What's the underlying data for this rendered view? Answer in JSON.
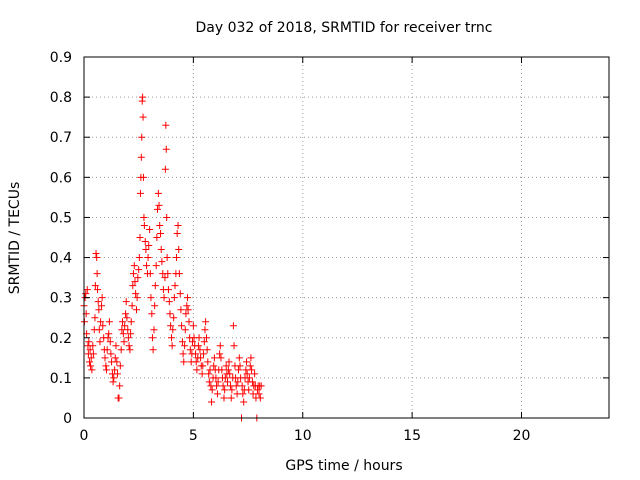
{
  "chart_data": {
    "type": "scatter",
    "title": "Day 032 of 2018, SRMTID for receiver trnc",
    "xlabel": "GPS time / hours",
    "ylabel": "SRMTID / TECUs",
    "xlim": [
      0,
      24
    ],
    "ylim": [
      0,
      0.9
    ],
    "xticks": [
      0,
      5,
      10,
      15,
      20
    ],
    "yticks": [
      0,
      0.1,
      0.2,
      0.3,
      0.4,
      0.5,
      0.6,
      0.7,
      0.8,
      0.9
    ],
    "grid": true,
    "marker": "+",
    "marker_color": "#ff0000",
    "series": [
      {
        "name": "trnc",
        "points": [
          [
            0.0,
            0.28
          ],
          [
            0.02,
            0.24
          ],
          [
            0.05,
            0.3
          ],
          [
            0.08,
            0.31
          ],
          [
            0.1,
            0.26
          ],
          [
            0.12,
            0.21
          ],
          [
            0.15,
            0.32
          ],
          [
            0.18,
            0.18
          ],
          [
            0.2,
            0.16
          ],
          [
            0.22,
            0.19
          ],
          [
            0.25,
            0.14
          ],
          [
            0.28,
            0.17
          ],
          [
            0.3,
            0.13
          ],
          [
            0.33,
            0.15
          ],
          [
            0.36,
            0.12
          ],
          [
            0.4,
            0.18
          ],
          [
            0.43,
            0.16
          ],
          [
            0.47,
            0.22
          ],
          [
            0.5,
            0.25
          ],
          [
            0.52,
            0.33
          ],
          [
            0.55,
            0.41
          ],
          [
            0.58,
            0.4
          ],
          [
            0.6,
            0.36
          ],
          [
            0.62,
            0.32
          ],
          [
            0.65,
            0.29
          ],
          [
            0.68,
            0.27
          ],
          [
            0.7,
            0.22
          ],
          [
            0.73,
            0.19
          ],
          [
            0.76,
            0.24
          ],
          [
            0.8,
            0.28
          ],
          [
            0.83,
            0.3
          ],
          [
            0.86,
            0.23
          ],
          [
            0.9,
            0.2
          ],
          [
            0.93,
            0.17
          ],
          [
            0.96,
            0.15
          ],
          [
            1.0,
            0.13
          ],
          [
            1.03,
            0.12
          ],
          [
            1.06,
            0.17
          ],
          [
            1.1,
            0.2
          ],
          [
            1.13,
            0.21
          ],
          [
            1.16,
            0.24
          ],
          [
            1.2,
            0.19
          ],
          [
            1.23,
            0.16
          ],
          [
            1.26,
            0.14
          ],
          [
            1.3,
            0.11
          ],
          [
            1.33,
            0.09
          ],
          [
            1.36,
            0.1
          ],
          [
            1.4,
            0.12
          ],
          [
            1.43,
            0.15
          ],
          [
            1.46,
            0.18
          ],
          [
            1.5,
            0.14
          ],
          [
            1.53,
            0.11
          ],
          [
            1.56,
            0.05
          ],
          [
            1.6,
            0.05
          ],
          [
            1.63,
            0.08
          ],
          [
            1.66,
            0.13
          ],
          [
            1.7,
            0.17
          ],
          [
            1.73,
            0.22
          ],
          [
            1.76,
            0.24
          ],
          [
            1.8,
            0.21
          ],
          [
            1.83,
            0.19
          ],
          [
            1.86,
            0.23
          ],
          [
            1.9,
            0.26
          ],
          [
            1.93,
            0.29
          ],
          [
            1.96,
            0.25
          ],
          [
            2.0,
            0.22
          ],
          [
            2.03,
            0.2
          ],
          [
            2.06,
            0.18
          ],
          [
            2.1,
            0.17
          ],
          [
            2.13,
            0.21
          ],
          [
            2.16,
            0.24
          ],
          [
            2.2,
            0.28
          ],
          [
            2.23,
            0.33
          ],
          [
            2.26,
            0.36
          ],
          [
            2.3,
            0.38
          ],
          [
            2.33,
            0.34
          ],
          [
            2.36,
            0.31
          ],
          [
            2.4,
            0.27
          ],
          [
            2.43,
            0.3
          ],
          [
            2.46,
            0.35
          ],
          [
            2.5,
            0.37
          ],
          [
            2.53,
            0.4
          ],
          [
            2.56,
            0.45
          ],
          [
            2.58,
            0.56
          ],
          [
            2.6,
            0.6
          ],
          [
            2.62,
            0.65
          ],
          [
            2.64,
            0.7
          ],
          [
            2.66,
            0.79
          ],
          [
            2.68,
            0.8
          ],
          [
            2.7,
            0.75
          ],
          [
            2.72,
            0.6
          ],
          [
            2.74,
            0.5
          ],
          [
            2.76,
            0.48
          ],
          [
            2.8,
            0.44
          ],
          [
            2.83,
            0.42
          ],
          [
            2.86,
            0.38
          ],
          [
            2.9,
            0.36
          ],
          [
            2.93,
            0.4
          ],
          [
            2.96,
            0.43
          ],
          [
            3.0,
            0.47
          ],
          [
            3.03,
            0.36
          ],
          [
            3.06,
            0.3
          ],
          [
            3.1,
            0.26
          ],
          [
            3.13,
            0.2
          ],
          [
            3.16,
            0.17
          ],
          [
            3.2,
            0.22
          ],
          [
            3.23,
            0.28
          ],
          [
            3.26,
            0.33
          ],
          [
            3.3,
            0.38
          ],
          [
            3.33,
            0.45
          ],
          [
            3.36,
            0.52
          ],
          [
            3.4,
            0.56
          ],
          [
            3.43,
            0.53
          ],
          [
            3.46,
            0.48
          ],
          [
            3.5,
            0.46
          ],
          [
            3.53,
            0.42
          ],
          [
            3.56,
            0.39
          ],
          [
            3.6,
            0.36
          ],
          [
            3.63,
            0.32
          ],
          [
            3.66,
            0.3
          ],
          [
            3.7,
            0.35
          ],
          [
            3.72,
            0.62
          ],
          [
            3.74,
            0.73
          ],
          [
            3.76,
            0.67
          ],
          [
            3.78,
            0.5
          ],
          [
            3.8,
            0.4
          ],
          [
            3.83,
            0.36
          ],
          [
            3.86,
            0.32
          ],
          [
            3.9,
            0.29
          ],
          [
            3.93,
            0.26
          ],
          [
            3.96,
            0.23
          ],
          [
            4.0,
            0.2
          ],
          [
            4.03,
            0.18
          ],
          [
            4.06,
            0.22
          ],
          [
            4.1,
            0.25
          ],
          [
            4.13,
            0.3
          ],
          [
            4.16,
            0.33
          ],
          [
            4.2,
            0.36
          ],
          [
            4.23,
            0.4
          ],
          [
            4.26,
            0.46
          ],
          [
            4.3,
            0.48
          ],
          [
            4.33,
            0.42
          ],
          [
            4.36,
            0.36
          ],
          [
            4.4,
            0.31
          ],
          [
            4.43,
            0.27
          ],
          [
            4.46,
            0.23
          ],
          [
            4.5,
            0.19
          ],
          [
            4.53,
            0.16
          ],
          [
            4.56,
            0.14
          ],
          [
            4.6,
            0.18
          ],
          [
            4.63,
            0.22
          ],
          [
            4.66,
            0.26
          ],
          [
            4.7,
            0.28
          ],
          [
            4.73,
            0.3
          ],
          [
            4.76,
            0.27
          ],
          [
            4.8,
            0.24
          ],
          [
            4.83,
            0.2
          ],
          [
            4.86,
            0.17
          ],
          [
            4.9,
            0.14
          ],
          [
            4.93,
            0.16
          ],
          [
            4.96,
            0.19
          ],
          [
            5.0,
            0.23
          ],
          [
            5.03,
            0.2
          ],
          [
            5.06,
            0.18
          ],
          [
            5.1,
            0.16
          ],
          [
            5.13,
            0.14
          ],
          [
            5.16,
            0.12
          ],
          [
            5.2,
            0.15
          ],
          [
            5.23,
            0.18
          ],
          [
            5.26,
            0.2
          ],
          [
            5.3,
            0.17
          ],
          [
            5.33,
            0.15
          ],
          [
            5.36,
            0.13
          ],
          [
            5.4,
            0.11
          ],
          [
            5.43,
            0.13
          ],
          [
            5.46,
            0.16
          ],
          [
            5.5,
            0.19
          ],
          [
            5.53,
            0.22
          ],
          [
            5.56,
            0.24
          ],
          [
            5.6,
            0.2
          ],
          [
            5.63,
            0.17
          ],
          [
            5.66,
            0.14
          ],
          [
            5.7,
            0.11
          ],
          [
            5.73,
            0.09
          ],
          [
            5.76,
            0.12
          ],
          [
            5.8,
            0.08
          ],
          [
            5.83,
            0.04
          ],
          [
            5.86,
            0.07
          ],
          [
            5.9,
            0.1
          ],
          [
            5.93,
            0.13
          ],
          [
            5.96,
            0.15
          ],
          [
            6.0,
            0.12
          ],
          [
            6.03,
            0.1
          ],
          [
            6.06,
            0.08
          ],
          [
            6.1,
            0.06
          ],
          [
            6.13,
            0.09
          ],
          [
            6.16,
            0.12
          ],
          [
            6.2,
            0.16
          ],
          [
            6.23,
            0.18
          ],
          [
            6.26,
            0.15
          ],
          [
            6.3,
            0.12
          ],
          [
            6.33,
            0.1
          ],
          [
            6.36,
            0.08
          ],
          [
            6.4,
            0.05
          ],
          [
            6.43,
            0.07
          ],
          [
            6.46,
            0.1
          ],
          [
            6.5,
            0.13
          ],
          [
            6.53,
            0.11
          ],
          [
            6.56,
            0.09
          ],
          [
            6.6,
            0.12
          ],
          [
            6.63,
            0.14
          ],
          [
            6.66,
            0.11
          ],
          [
            6.7,
            0.08
          ],
          [
            6.73,
            0.05
          ],
          [
            6.76,
            0.07
          ],
          [
            6.8,
            0.1
          ],
          [
            6.83,
            0.23
          ],
          [
            6.86,
            0.18
          ],
          [
            6.9,
            0.13
          ],
          [
            6.93,
            0.1
          ],
          [
            6.96,
            0.08
          ],
          [
            7.0,
            0.06
          ],
          [
            7.03,
            0.09
          ],
          [
            7.06,
            0.12
          ],
          [
            7.1,
            0.15
          ],
          [
            7.13,
            0.13
          ],
          [
            7.16,
            0.1
          ],
          [
            7.2,
            0.0
          ],
          [
            7.23,
            0.08
          ],
          [
            7.26,
            0.06
          ],
          [
            7.3,
            0.04
          ],
          [
            7.33,
            0.07
          ],
          [
            7.36,
            0.1
          ],
          [
            7.4,
            0.12
          ],
          [
            7.43,
            0.14
          ],
          [
            7.46,
            0.11
          ],
          [
            7.5,
            0.09
          ],
          [
            7.53,
            0.07
          ],
          [
            7.56,
            0.1
          ],
          [
            7.6,
            0.13
          ],
          [
            7.63,
            0.15
          ],
          [
            7.66,
            0.12
          ],
          [
            7.7,
            0.09
          ],
          [
            7.73,
            0.06
          ],
          [
            7.76,
            0.08
          ],
          [
            7.8,
            0.11
          ],
          [
            7.83,
            0.08
          ],
          [
            7.86,
            0.05
          ],
          [
            7.9,
            0.0
          ],
          [
            7.93,
            0.07
          ],
          [
            7.96,
            0.08
          ],
          [
            8.0,
            0.06
          ],
          [
            8.03,
            0.08
          ],
          [
            8.06,
            0.05
          ],
          [
            8.1,
            0.08
          ]
        ]
      }
    ]
  }
}
